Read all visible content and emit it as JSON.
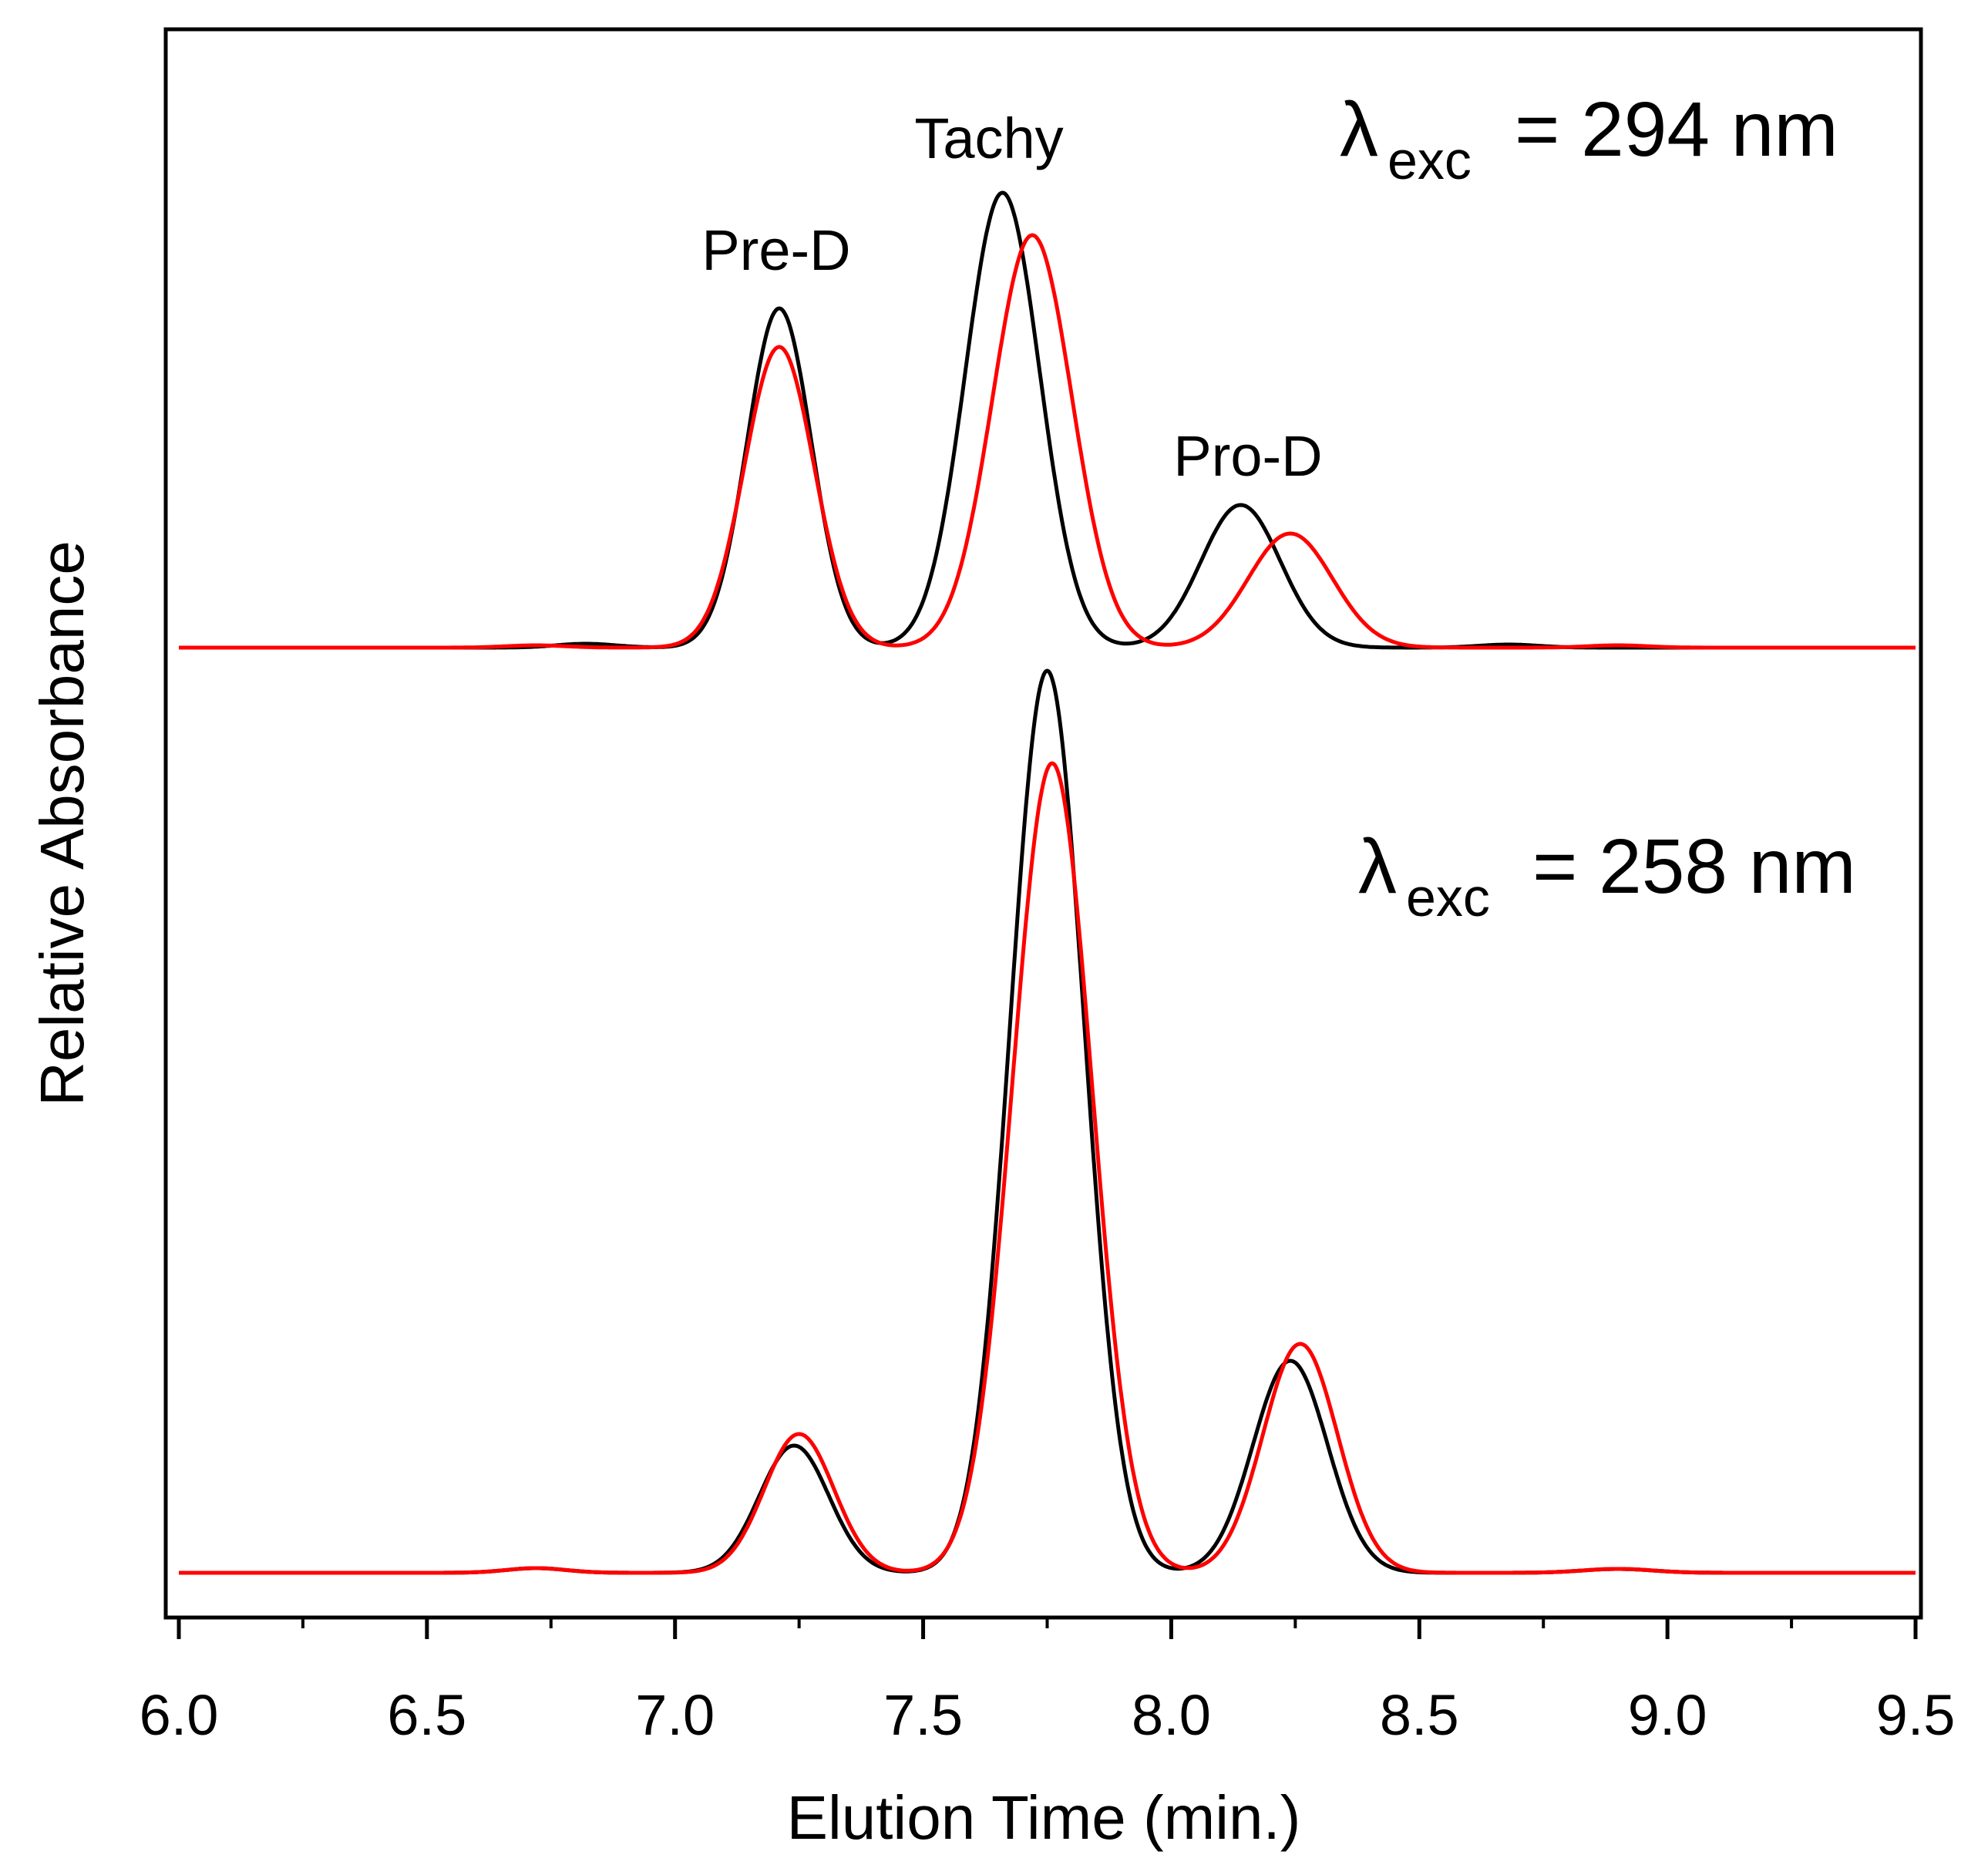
{
  "chart_data": {
    "type": "line",
    "title": "",
    "xlabel": "Elution Time (min.)",
    "ylabel": "Relative Absorbance",
    "xlim": [
      6.0,
      9.5
    ],
    "ylim": [
      0,
      2.1
    ],
    "x_ticks": [
      6.0,
      6.5,
      7.0,
      7.5,
      8.0,
      8.5,
      9.0,
      9.5
    ],
    "x_tick_labels": [
      "6.0",
      "6.5",
      "7.0",
      "7.5",
      "8.0",
      "8.5",
      "9.0",
      "9.5"
    ],
    "y_ticks_shown": false,
    "colors": {
      "black_trace": "#000000",
      "red_trace": "#ff0000"
    },
    "panels": [
      {
        "name": "top",
        "annotation": {
          "symbol": "λ",
          "subscript": "exc",
          "text": "= 294 nm"
        },
        "peak_labels": [
          {
            "text": "Pre-D",
            "x": 7.2
          },
          {
            "text": "Tachy",
            "x": 7.65
          },
          {
            "text": "Pro-D",
            "x": 8.14
          }
        ],
        "baseline": 1.2,
        "series": [
          {
            "name": "black",
            "color": "#000000",
            "peaks": [
              {
                "center": 6.82,
                "height": 0.005,
                "width": 0.06
              },
              {
                "center": 7.21,
                "height": 0.44,
                "width": 0.065
              },
              {
                "center": 7.66,
                "height": 0.59,
                "width": 0.075
              },
              {
                "center": 8.14,
                "height": 0.185,
                "width": 0.08
              },
              {
                "center": 8.68,
                "height": 0.004,
                "width": 0.06
              }
            ]
          },
          {
            "name": "red",
            "color": "#ff0000",
            "peaks": [
              {
                "center": 6.72,
                "height": 0.003,
                "width": 0.06
              },
              {
                "center": 7.21,
                "height": 0.39,
                "width": 0.07
              },
              {
                "center": 7.72,
                "height": 0.535,
                "width": 0.08
              },
              {
                "center": 8.24,
                "height": 0.148,
                "width": 0.085
              },
              {
                "center": 8.9,
                "height": 0.003,
                "width": 0.06
              }
            ]
          }
        ]
      },
      {
        "name": "bottom",
        "annotation": {
          "symbol": "λ",
          "subscript": "exc",
          "text": "= 258 nm"
        },
        "peak_labels": [],
        "baseline": 0.0,
        "series": [
          {
            "name": "black",
            "color": "#000000",
            "peaks": [
              {
                "center": 6.72,
                "height": 0.006,
                "width": 0.06
              },
              {
                "center": 7.24,
                "height": 0.165,
                "width": 0.07
              },
              {
                "center": 7.75,
                "height": 1.17,
                "width": 0.075
              },
              {
                "center": 8.24,
                "height": 0.275,
                "width": 0.075
              },
              {
                "center": 8.9,
                "height": 0.005,
                "width": 0.07
              }
            ]
          },
          {
            "name": "red",
            "color": "#ff0000",
            "peaks": [
              {
                "center": 6.72,
                "height": 0.006,
                "width": 0.06
              },
              {
                "center": 7.25,
                "height": 0.18,
                "width": 0.07
              },
              {
                "center": 7.76,
                "height": 1.05,
                "width": 0.08
              },
              {
                "center": 8.26,
                "height": 0.297,
                "width": 0.075
              },
              {
                "center": 8.9,
                "height": 0.005,
                "width": 0.07
              }
            ]
          }
        ]
      }
    ]
  }
}
